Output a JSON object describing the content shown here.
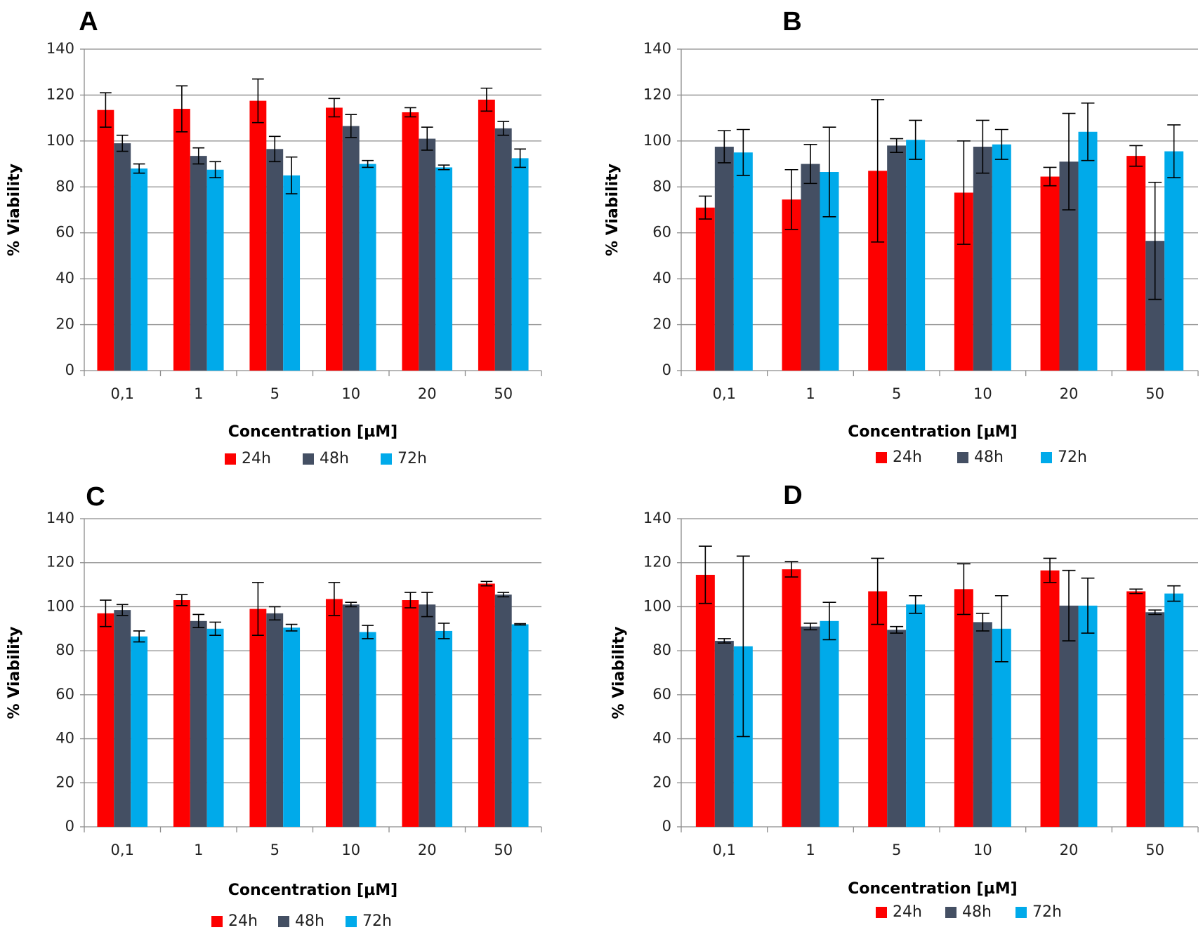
{
  "colors": {
    "24h": "#fd0000",
    "48h": "#444f63",
    "72h": "#00aaea"
  },
  "chart_data": [
    {
      "type": "bar",
      "panel": "A",
      "categories": [
        "0,1",
        "1",
        "5",
        "10",
        "20",
        "50"
      ],
      "xlabel": "Concentration [µM]",
      "ylabel": "% Viability",
      "ylim": [
        0,
        140
      ],
      "yticks": [
        0,
        20,
        40,
        60,
        80,
        100,
        120,
        140
      ],
      "grid": true,
      "legend": "bottom",
      "series": [
        {
          "name": "24h",
          "values": [
            113.5,
            114,
            117.5,
            114.5,
            112.5,
            118
          ],
          "errors": [
            7.5,
            10,
            9.5,
            4,
            2,
            5
          ]
        },
        {
          "name": "48h",
          "values": [
            99,
            93.5,
            96.5,
            106.5,
            101,
            105.5
          ],
          "errors": [
            3.5,
            3.5,
            5.5,
            5,
            5,
            3
          ]
        },
        {
          "name": "72h",
          "values": [
            88,
            87.5,
            85,
            90,
            88.5,
            92.5
          ],
          "errors": [
            2,
            3.5,
            8,
            1.5,
            1,
            4
          ]
        }
      ]
    },
    {
      "type": "bar",
      "panel": "B",
      "categories": [
        "0,1",
        "1",
        "5",
        "10",
        "20",
        "50"
      ],
      "xlabel": "Concentration [µM]",
      "ylabel": "% Viability",
      "ylim": [
        0,
        140
      ],
      "yticks": [
        0,
        20,
        40,
        60,
        80,
        100,
        120,
        140
      ],
      "grid": true,
      "legend": "bottom",
      "series": [
        {
          "name": "24h",
          "values": [
            71,
            74.5,
            87,
            77.5,
            84.5,
            93.5
          ],
          "errors": [
            5,
            13,
            31,
            22.5,
            4,
            4.5
          ]
        },
        {
          "name": "48h",
          "values": [
            97.5,
            90,
            98,
            97.5,
            91,
            56.5
          ],
          "errors": [
            7,
            8.5,
            3,
            11.5,
            21,
            25.5
          ]
        },
        {
          "name": "72h",
          "values": [
            95,
            86.5,
            100.5,
            98.5,
            104,
            95.5
          ],
          "errors": [
            10,
            19.5,
            8.5,
            6.5,
            12.5,
            11.5
          ]
        }
      ]
    },
    {
      "type": "bar",
      "panel": "C",
      "categories": [
        "0,1",
        "1",
        "5",
        "10",
        "20",
        "50"
      ],
      "xlabel": "Concentration [µM]",
      "ylabel": "% Viability",
      "ylim": [
        0,
        140
      ],
      "yticks": [
        0,
        20,
        40,
        60,
        80,
        100,
        120,
        140
      ],
      "grid": true,
      "legend": "bottom",
      "series": [
        {
          "name": "24h",
          "values": [
            97,
            103,
            99,
            103.5,
            103,
            110.5
          ],
          "errors": [
            6,
            2.5,
            12,
            7.5,
            3.5,
            1
          ]
        },
        {
          "name": "48h",
          "values": [
            98.5,
            93.5,
            97,
            101,
            101,
            105.5
          ],
          "errors": [
            2.5,
            3,
            3,
            1,
            5.5,
            1
          ]
        },
        {
          "name": "72h",
          "values": [
            86.5,
            90,
            90.5,
            88.5,
            89,
            92
          ],
          "errors": [
            2.5,
            3,
            1.5,
            3,
            3.5,
            0.3
          ]
        }
      ]
    },
    {
      "type": "bar",
      "panel": "D",
      "categories": [
        "0,1",
        "1",
        "5",
        "10",
        "20",
        "50"
      ],
      "xlabel": "Concentration [µM]",
      "ylabel": "% Viability",
      "ylim": [
        0,
        140
      ],
      "yticks": [
        0,
        20,
        40,
        60,
        80,
        100,
        120,
        140
      ],
      "grid": true,
      "legend": "bottom",
      "series": [
        {
          "name": "24h",
          "values": [
            114.5,
            117,
            107,
            108,
            116.5,
            107
          ],
          "errors": [
            13,
            3.5,
            15,
            11.5,
            5.5,
            1
          ]
        },
        {
          "name": "48h",
          "values": [
            84.5,
            91,
            89.5,
            93,
            100.5,
            97.5
          ],
          "errors": [
            1,
            1.5,
            1.5,
            4,
            16,
            1
          ]
        },
        {
          "name": "72h",
          "values": [
            82,
            93.5,
            101,
            90,
            100.5,
            106
          ],
          "errors": [
            41,
            8.5,
            4,
            15,
            12.5,
            3.5
          ]
        }
      ]
    }
  ]
}
